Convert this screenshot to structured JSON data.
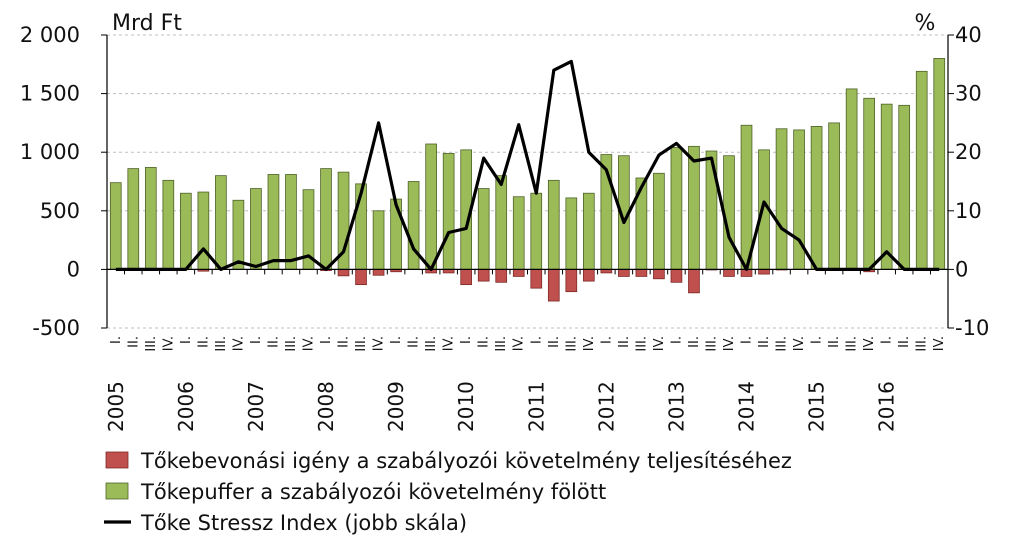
{
  "chart_data": {
    "type": "bar",
    "left_unit": "Mrd Ft",
    "right_unit": "%",
    "left_axis": {
      "min": -500,
      "max": 2000,
      "step": 500,
      "tick_labels": [
        "-500",
        "0",
        "500",
        "1 000",
        "1 500",
        "2 000"
      ]
    },
    "right_axis": {
      "min": -10,
      "max": 40,
      "step": 10,
      "tick_labels": [
        "-10",
        "0",
        "10",
        "20",
        "30",
        "40"
      ]
    },
    "grid": true,
    "legend_position": "bottom-left",
    "years": [
      "2005",
      "2006",
      "2007",
      "2008",
      "2009",
      "2010",
      "2011",
      "2012",
      "2013",
      "2014",
      "2015",
      "2016"
    ],
    "quarter_labels": [
      "I.",
      "II.",
      "III.",
      "IV."
    ],
    "series": [
      {
        "name": "Tőkebevonási igény a szabályozói követelmény teljesítéséhez",
        "kind": "bar",
        "axis": "left",
        "color": "#c0504d",
        "values": [
          0,
          0,
          0,
          0,
          0,
          -15,
          0,
          0,
          0,
          0,
          0,
          0,
          -10,
          -55,
          -130,
          -50,
          -20,
          0,
          -30,
          -30,
          -130,
          -100,
          -110,
          -60,
          -160,
          -270,
          -190,
          -100,
          -30,
          -60,
          -60,
          -80,
          -110,
          -200,
          -5,
          -60,
          -60,
          -40,
          -5,
          0,
          0,
          0,
          0,
          -20,
          0,
          0,
          0,
          0
        ]
      },
      {
        "name": "Tőkepuffer a szabályozói követelmény fölött",
        "kind": "bar",
        "axis": "left",
        "color": "#9bbb59",
        "values": [
          740,
          860,
          870,
          760,
          650,
          660,
          800,
          590,
          690,
          810,
          810,
          680,
          860,
          830,
          730,
          500,
          600,
          750,
          1070,
          990,
          1020,
          690,
          800,
          620,
          650,
          760,
          610,
          650,
          980,
          970,
          780,
          820,
          1040,
          1050,
          1010,
          970,
          1230,
          1020,
          1200,
          1190,
          1220,
          1250,
          1540,
          1460,
          1410,
          1400,
          1690,
          1800
        ]
      },
      {
        "name": "Tőke Stressz Index (jobb skála)",
        "kind": "line",
        "axis": "right",
        "color": "#000000",
        "values": [
          0,
          0,
          0,
          0,
          0,
          3.5,
          0,
          1.3,
          0.5,
          1.5,
          1.5,
          2.3,
          0,
          3,
          13,
          25,
          11,
          3.5,
          0,
          6.3,
          7,
          19,
          14.5,
          24.7,
          13,
          34,
          35.5,
          20,
          17,
          8,
          14,
          19.5,
          21.5,
          18.5,
          19,
          5.5,
          0,
          11.5,
          7,
          5,
          0,
          0,
          0,
          0,
          3,
          0,
          0,
          0
        ]
      }
    ]
  }
}
